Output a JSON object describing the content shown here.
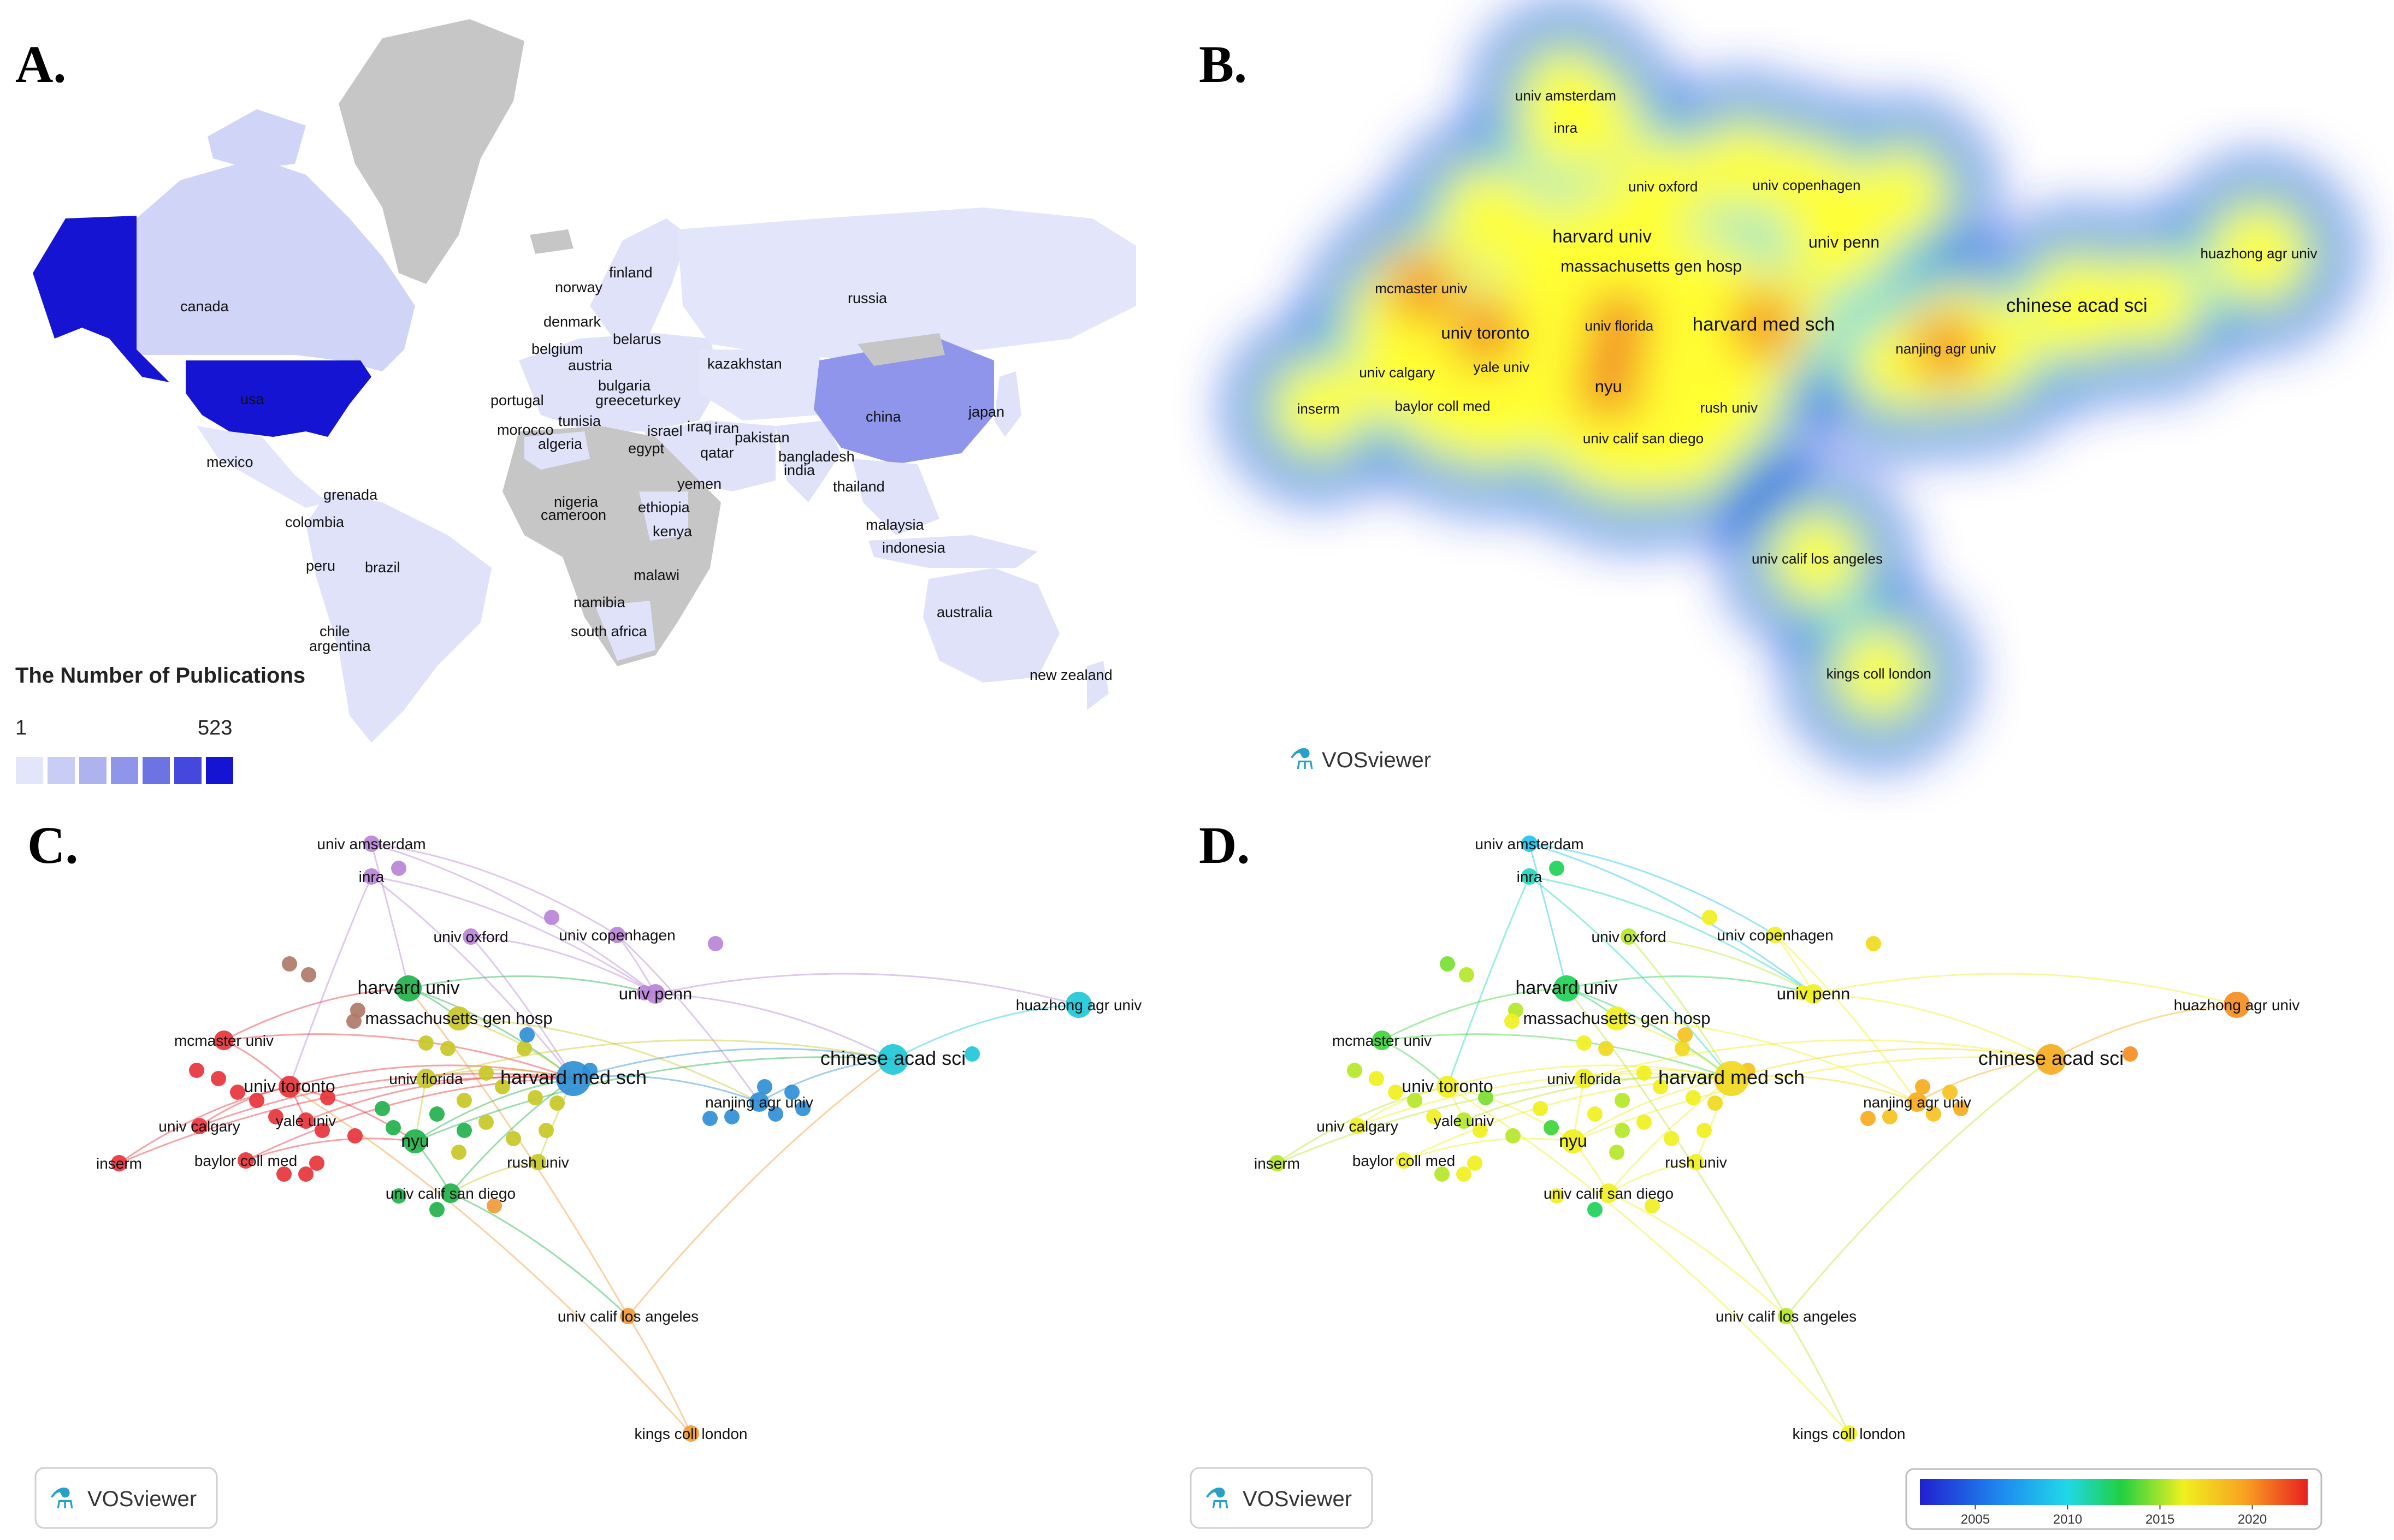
{
  "panels": {
    "a": {
      "letter": "A."
    },
    "b": {
      "letter": "B."
    },
    "c": {
      "letter": "C."
    },
    "d": {
      "letter": "D."
    }
  },
  "map": {
    "countries": [
      {
        "key": "canada",
        "label": "canada"
      },
      {
        "key": "usa",
        "label": "usa"
      },
      {
        "key": "mexico",
        "label": "mexico"
      },
      {
        "key": "grenada",
        "label": "grenada"
      },
      {
        "key": "colombia",
        "label": "colombia"
      },
      {
        "key": "peru",
        "label": "peru"
      },
      {
        "key": "brazil",
        "label": "brazil"
      },
      {
        "key": "chile",
        "label": "chile"
      },
      {
        "key": "argentina",
        "label": "argentina"
      },
      {
        "key": "finland",
        "label": "finland"
      },
      {
        "key": "norway",
        "label": "norway"
      },
      {
        "key": "denmark",
        "label": "denmark"
      },
      {
        "key": "belarus",
        "label": "belarus"
      },
      {
        "key": "belgium",
        "label": "belgium"
      },
      {
        "key": "austria",
        "label": "austria"
      },
      {
        "key": "bulgaria",
        "label": "bulgaria"
      },
      {
        "key": "greece",
        "label": "greeceturkey"
      },
      {
        "key": "portugal",
        "label": "portugal"
      },
      {
        "key": "tunisia",
        "label": "tunisia"
      },
      {
        "key": "morocco",
        "label": "morocco"
      },
      {
        "key": "algeria",
        "label": "algeria"
      },
      {
        "key": "egypt",
        "label": "egypt"
      },
      {
        "key": "israel",
        "label": "israel"
      },
      {
        "key": "iraq",
        "label": "iraq"
      },
      {
        "key": "iran",
        "label": "iran"
      },
      {
        "key": "qatar",
        "label": "qatar"
      },
      {
        "key": "pakistan",
        "label": "pakistan"
      },
      {
        "key": "kazakhstan",
        "label": "kazakhstan"
      },
      {
        "key": "russia",
        "label": "russia"
      },
      {
        "key": "china",
        "label": "china"
      },
      {
        "key": "japan",
        "label": "japan"
      },
      {
        "key": "bangladesh",
        "label": "bangladesh"
      },
      {
        "key": "india",
        "label": "india"
      },
      {
        "key": "thailand",
        "label": "thailand"
      },
      {
        "key": "yemen",
        "label": "yemen"
      },
      {
        "key": "nigeria",
        "label": "nigeria"
      },
      {
        "key": "cameroon",
        "label": "cameroon"
      },
      {
        "key": "ethiopia",
        "label": "ethiopia"
      },
      {
        "key": "kenya",
        "label": "kenya"
      },
      {
        "key": "malawi",
        "label": "malawi"
      },
      {
        "key": "namibia",
        "label": "namibia"
      },
      {
        "key": "south_africa",
        "label": "south africa"
      },
      {
        "key": "malaysia",
        "label": "malaysia"
      },
      {
        "key": "indonesia",
        "label": "indonesia"
      },
      {
        "key": "australia",
        "label": "australia"
      },
      {
        "key": "new_zealand",
        "label": "new zealand"
      }
    ],
    "legend": {
      "title": "The Number of Publications",
      "min": "1",
      "max": "523",
      "min_value": 1,
      "max_value": 523,
      "steps": [
        "#e3e6fa",
        "#c9cdf5",
        "#aeb3f0",
        "#8f95ea",
        "#6d73e3",
        "#4448dc",
        "#1414d2"
      ]
    }
  },
  "network": {
    "institutions": [
      {
        "key": "univ_amsterdam",
        "label": "univ amsterdam",
        "cluster": "purple",
        "year": 2008
      },
      {
        "key": "inra",
        "label": "inra",
        "cluster": "purple",
        "year": 2010
      },
      {
        "key": "univ_oxford",
        "label": "univ oxford",
        "cluster": "purple",
        "year": 2015
      },
      {
        "key": "univ_copenhagen",
        "label": "univ copenhagen",
        "cluster": "purple",
        "year": 2016
      },
      {
        "key": "univ_penn",
        "label": "univ penn",
        "cluster": "purple",
        "year": 2016
      },
      {
        "key": "harvard_univ",
        "label": "harvard univ",
        "cluster": "green",
        "year": 2012
      },
      {
        "key": "massachusetts_gen_hosp",
        "label": "massachusetts gen hosp",
        "cluster": "yellow",
        "year": 2016
      },
      {
        "key": "mcmaster_univ",
        "label": "mcmaster univ",
        "cluster": "red",
        "year": 2013
      },
      {
        "key": "univ_toronto",
        "label": "univ toronto",
        "cluster": "red",
        "year": 2016
      },
      {
        "key": "univ_florida",
        "label": "univ florida",
        "cluster": "yellow",
        "year": 2016
      },
      {
        "key": "harvard_med_sch",
        "label": "harvard med sch",
        "cluster": "blue",
        "year": 2017
      },
      {
        "key": "nanjing_agr_univ",
        "label": "nanjing agr univ",
        "cluster": "blue",
        "year": 2019
      },
      {
        "key": "chinese_acad_sci",
        "label": "chinese acad sci",
        "cluster": "cyan",
        "year": 2019
      },
      {
        "key": "huazhong_agr_univ",
        "label": "huazhong agr univ",
        "cluster": "cyan",
        "year": 2020
      },
      {
        "key": "univ_calgary",
        "label": "univ calgary",
        "cluster": "red",
        "year": 2016
      },
      {
        "key": "yale_univ",
        "label": "yale univ",
        "cluster": "red",
        "year": 2015
      },
      {
        "key": "nyu",
        "label": "nyu",
        "cluster": "green",
        "year": 2016
      },
      {
        "key": "inserm",
        "label": "inserm",
        "cluster": "red",
        "year": 2015
      },
      {
        "key": "baylor_coll_med",
        "label": "baylor coll med",
        "cluster": "red",
        "year": 2016
      },
      {
        "key": "rush_univ",
        "label": "rush univ",
        "cluster": "yellow",
        "year": 2016
      },
      {
        "key": "univ_calif_san_diego",
        "label": "univ calif san diego",
        "cluster": "green",
        "year": 2016
      },
      {
        "key": "univ_calif_los_angeles",
        "label": "univ calif los angeles",
        "cluster": "orange",
        "year": 2015
      },
      {
        "key": "kings_coll_london",
        "label": "kings coll london",
        "cluster": "orange",
        "year": 2016
      }
    ],
    "cluster_colors": {
      "red": "#e8343c",
      "green": "#22b14c",
      "blue": "#2f8fd6",
      "yellow": "#c8c828",
      "purple": "#b884d8",
      "cyan": "#20c8d8",
      "orange": "#f29a38",
      "brown": "#b07a68"
    }
  },
  "timescale": {
    "ticks": [
      "2005",
      "2010",
      "2015",
      "2020"
    ],
    "tick_values": [
      2005,
      2010,
      2015,
      2020
    ],
    "range": [
      2002,
      2023
    ]
  },
  "vosviewer": {
    "label": "VOSviewer"
  }
}
